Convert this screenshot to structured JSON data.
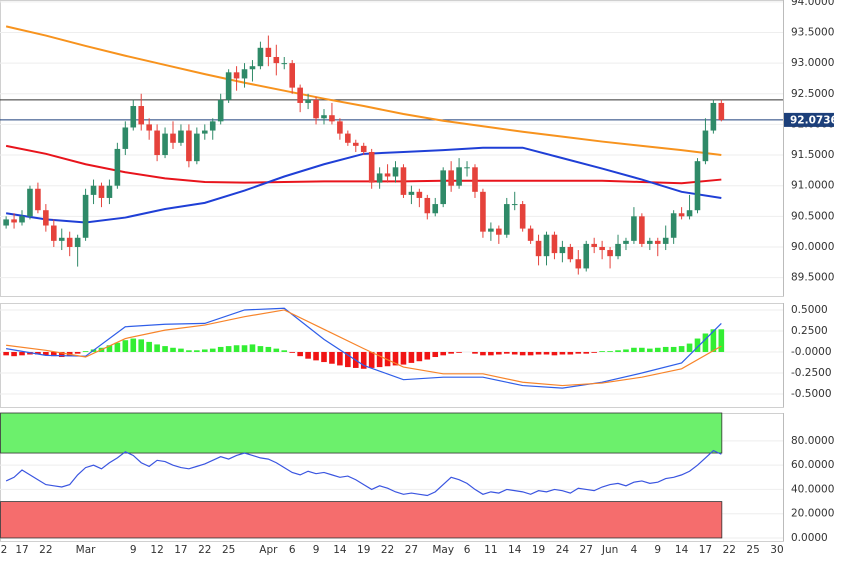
{
  "chart_data": [
    {
      "type": "candlestick",
      "xlim": [
        -0.77,
        97.76
      ],
      "ylim": [
        89.2,
        94.03
      ],
      "grid": true,
      "yticks": [
        {
          "value": 89.5,
          "label": "89.5000"
        },
        {
          "value": 90,
          "label": "90.0000"
        },
        {
          "value": 90.5,
          "label": "90.5000"
        },
        {
          "value": 91,
          "label": "91.0000"
        },
        {
          "value": 91.5,
          "label": "91.5000"
        },
        {
          "value": 92,
          "label": "92.0000"
        },
        {
          "value": 92.5,
          "label": "92.5000"
        },
        {
          "value": 93,
          "label": "93.0000"
        },
        {
          "value": 93.5,
          "label": "93.5000"
        },
        {
          "value": 94,
          "label": "94.0000"
        }
      ],
      "up_color": "#2f8a68",
      "down_color": "#e5423b",
      "open": [
        90.35,
        90.45,
        90.4,
        90.5,
        90.95,
        90.6,
        90.35,
        90.1,
        90.15,
        90.0,
        90.15,
        90.85,
        91.0,
        90.8,
        91.0,
        91.6,
        91.95,
        92.3,
        92.0,
        91.9,
        91.5,
        91.85,
        91.7,
        91.9,
        91.4,
        91.85,
        91.9,
        92.05,
        92.4,
        92.85,
        92.75,
        92.9,
        92.95,
        93.25,
        93.1,
        93.0,
        93.0,
        92.6,
        92.35,
        92.4,
        92.1,
        92.15,
        92.05,
        91.85,
        91.7,
        91.65,
        91.55,
        91.05,
        91.2,
        91.15,
        91.3,
        90.85,
        90.9,
        90.8,
        90.55,
        90.7,
        91.25,
        91.0,
        91.3,
        91.3,
        90.9,
        90.25,
        90.3,
        90.2,
        90.7,
        90.7,
        90.3,
        90.1,
        89.85,
        90.2,
        89.9,
        90.0,
        89.8,
        89.65,
        90.05,
        90.0,
        89.95,
        89.85,
        90.05,
        90.1,
        90.5,
        90.05,
        90.1,
        90.05,
        90.15,
        90.55,
        90.5,
        90.6,
        91.4,
        91.9,
        92.35
      ],
      "high": [
        90.5,
        90.55,
        90.6,
        91.0,
        91.05,
        90.7,
        90.45,
        90.3,
        90.25,
        90.2,
        90.95,
        91.1,
        91.05,
        91.1,
        91.7,
        92.05,
        92.4,
        92.5,
        92.1,
        92.0,
        91.95,
        92.05,
        92.0,
        92.0,
        91.95,
        92.0,
        92.1,
        92.5,
        92.9,
        92.95,
        93.0,
        93.05,
        93.35,
        93.45,
        93.3,
        93.1,
        93.05,
        92.65,
        92.5,
        92.45,
        92.25,
        92.35,
        92.1,
        91.9,
        91.75,
        91.7,
        91.6,
        91.3,
        91.35,
        91.4,
        91.35,
        91.0,
        90.95,
        90.85,
        90.8,
        91.3,
        91.4,
        91.45,
        91.4,
        91.35,
        90.95,
        90.4,
        90.35,
        90.8,
        90.9,
        90.75,
        90.35,
        90.2,
        90.25,
        90.25,
        90.1,
        90.05,
        89.95,
        90.1,
        90.15,
        90.1,
        90.0,
        90.2,
        90.15,
        90.65,
        90.55,
        90.15,
        90.15,
        90.35,
        90.6,
        90.65,
        90.85,
        91.45,
        92.1,
        92.4,
        92.4
      ],
      "low": [
        90.3,
        90.3,
        90.35,
        90.45,
        90.55,
        90.25,
        90.0,
        89.95,
        89.85,
        89.68,
        90.1,
        90.7,
        90.65,
        90.7,
        90.95,
        91.5,
        91.9,
        91.9,
        91.75,
        91.4,
        91.45,
        91.6,
        91.65,
        91.3,
        91.35,
        91.75,
        91.75,
        92.0,
        92.35,
        92.55,
        92.6,
        92.7,
        92.9,
        92.95,
        92.8,
        92.9,
        92.5,
        92.2,
        92.25,
        92.0,
        92.0,
        92.0,
        91.75,
        91.65,
        91.55,
        91.5,
        90.95,
        90.95,
        91.05,
        91.05,
        90.8,
        90.7,
        90.65,
        90.45,
        90.5,
        90.65,
        90.9,
        90.95,
        91.15,
        90.8,
        90.15,
        90.1,
        90.05,
        90.15,
        90.6,
        90.25,
        90.05,
        89.7,
        89.7,
        89.8,
        89.75,
        89.75,
        89.55,
        89.6,
        89.9,
        89.8,
        89.65,
        89.8,
        89.95,
        90.05,
        90.0,
        89.95,
        89.85,
        89.95,
        90.05,
        90.45,
        90.45,
        90.55,
        91.35,
        91.85,
        92.05
      ],
      "close": [
        90.45,
        90.4,
        90.5,
        90.95,
        90.6,
        90.35,
        90.1,
        90.15,
        90.0,
        90.15,
        90.85,
        91.0,
        90.8,
        91.0,
        91.6,
        91.95,
        92.3,
        92.0,
        91.9,
        91.5,
        91.85,
        91.7,
        91.9,
        91.4,
        91.85,
        91.9,
        92.05,
        92.4,
        92.85,
        92.75,
        92.9,
        92.95,
        93.25,
        93.1,
        93.0,
        93.0,
        92.6,
        92.35,
        92.4,
        92.1,
        92.15,
        92.05,
        91.85,
        91.7,
        91.65,
        91.55,
        91.05,
        91.2,
        91.15,
        91.3,
        90.85,
        90.9,
        90.8,
        90.55,
        90.7,
        91.25,
        91.0,
        91.3,
        91.3,
        90.9,
        90.25,
        90.3,
        90.2,
        90.7,
        90.7,
        90.3,
        90.1,
        89.85,
        90.2,
        89.9,
        90.0,
        89.8,
        89.65,
        90.05,
        90.0,
        89.95,
        89.85,
        90.05,
        90.1,
        90.5,
        90.05,
        90.1,
        90.05,
        90.15,
        90.55,
        90.5,
        90.6,
        91.4,
        91.9,
        92.35,
        92.0736
      ],
      "series": [
        {
          "color": "#f7931e",
          "x": [
            0,
            5,
            10,
            15,
            20,
            25,
            30,
            35,
            40,
            45,
            50,
            55,
            60,
            65,
            70,
            75,
            80,
            85,
            90
          ],
          "values": [
            93.6,
            93.45,
            93.28,
            93.12,
            92.97,
            92.82,
            92.68,
            92.55,
            92.42,
            92.3,
            92.17,
            92.06,
            91.97,
            91.88,
            91.8,
            91.72,
            91.65,
            91.58,
            91.5
          ]
        },
        {
          "color": "#e8141c",
          "x": [
            0,
            5,
            10,
            15,
            20,
            25,
            30,
            35,
            40,
            45,
            50,
            55,
            60,
            65,
            70,
            75,
            80,
            85,
            90
          ],
          "values": [
            91.65,
            91.52,
            91.35,
            91.22,
            91.12,
            91.06,
            91.05,
            91.06,
            91.07,
            91.07,
            91.07,
            91.08,
            91.08,
            91.08,
            91.08,
            91.08,
            91.06,
            91.04,
            91.1
          ]
        },
        {
          "color": "#1f3fd6",
          "x": [
            0,
            5,
            10,
            15,
            20,
            25,
            30,
            35,
            40,
            45,
            50,
            55,
            60,
            65,
            70,
            75,
            80,
            85,
            90
          ],
          "values": [
            90.55,
            90.45,
            90.4,
            90.48,
            90.62,
            90.72,
            90.92,
            91.15,
            91.35,
            91.52,
            91.55,
            91.58,
            91.62,
            91.62,
            91.45,
            91.28,
            91.1,
            90.9,
            90.8
          ]
        }
      ],
      "hlines": [
        {
          "value": 92.4,
          "color": "#333333"
        }
      ],
      "last_price": 92.0736,
      "last_price_color": "#1c3f7a"
    },
    {
      "type": "macd",
      "xlim": [
        -0.77,
        97.76
      ],
      "ylim": [
        -0.655,
        0.583
      ],
      "grid": true,
      "yticks": [
        {
          "value": -0.5,
          "label": "-0.5000"
        },
        {
          "value": -0.25,
          "label": "-0.2500"
        },
        {
          "value": 0,
          "label": "-0.0000"
        },
        {
          "value": 0.25,
          "label": "0.2500"
        },
        {
          "value": 0.5,
          "label": "0.5000"
        }
      ],
      "pos_color": "#33ee33",
      "neg_color": "#f01414",
      "histogram": [
        -0.04,
        -0.05,
        -0.04,
        -0.03,
        -0.03,
        -0.04,
        -0.05,
        -0.06,
        -0.05,
        -0.02,
        0.01,
        0.03,
        0.05,
        0.08,
        0.11,
        0.14,
        0.16,
        0.15,
        0.12,
        0.09,
        0.07,
        0.05,
        0.04,
        0.02,
        0.02,
        0.03,
        0.04,
        0.06,
        0.07,
        0.08,
        0.08,
        0.09,
        0.07,
        0.06,
        0.04,
        0.02,
        -0.01,
        -0.05,
        -0.08,
        -0.1,
        -0.12,
        -0.14,
        -0.16,
        -0.18,
        -0.19,
        -0.2,
        -0.19,
        -0.18,
        -0.17,
        -0.16,
        -0.15,
        -0.13,
        -0.11,
        -0.09,
        -0.06,
        -0.04,
        -0.02,
        -0.01,
        0.0,
        -0.02,
        -0.04,
        -0.04,
        -0.03,
        -0.02,
        -0.03,
        -0.04,
        -0.04,
        -0.03,
        -0.03,
        -0.04,
        -0.03,
        -0.03,
        -0.02,
        -0.02,
        -0.01,
        0.01,
        0.01,
        0.02,
        0.03,
        0.05,
        0.05,
        0.04,
        0.05,
        0.06,
        0.06,
        0.07,
        0.1,
        0.16,
        0.22,
        0.27,
        0.27
      ],
      "series": [
        {
          "color": "#2f5ee8",
          "x": [
            0,
            5,
            10,
            15,
            20,
            25,
            30,
            35,
            40,
            45,
            50,
            55,
            60,
            65,
            70,
            75,
            80,
            85,
            90
          ],
          "values": [
            0.04,
            -0.04,
            -0.05,
            0.3,
            0.33,
            0.34,
            0.5,
            0.52,
            0.15,
            -0.16,
            -0.33,
            -0.3,
            -0.3,
            -0.4,
            -0.43,
            -0.36,
            -0.25,
            -0.13,
            0.34
          ]
        },
        {
          "color": "#f7842a",
          "x": [
            0,
            5,
            10,
            15,
            20,
            25,
            30,
            35,
            40,
            45,
            50,
            55,
            60,
            65,
            70,
            75,
            80,
            85,
            90
          ],
          "values": [
            0.08,
            0.02,
            -0.06,
            0.16,
            0.26,
            0.32,
            0.42,
            0.5,
            0.27,
            0.04,
            -0.18,
            -0.26,
            -0.26,
            -0.36,
            -0.4,
            -0.37,
            -0.3,
            -0.2,
            0.07
          ]
        }
      ]
    },
    {
      "type": "line",
      "xlim": [
        -0.77,
        97.76
      ],
      "ylim": [
        -2.5,
        103
      ],
      "grid": true,
      "yticks": [
        {
          "value": 0,
          "label": "0.0000"
        },
        {
          "value": 20,
          "label": "20.0000"
        },
        {
          "value": 40,
          "label": "40.0000"
        },
        {
          "value": 60,
          "label": "60.0000"
        },
        {
          "value": 80,
          "label": "80.0000"
        }
      ],
      "bands": [
        {
          "from": 70,
          "to": 103,
          "color": "#6cf06c"
        },
        {
          "from": 0,
          "to": 30,
          "color": "#f56d6d"
        }
      ],
      "series": [
        {
          "color": "#3a55e0",
          "values": [
            47,
            50,
            56,
            52,
            48,
            44,
            43,
            42,
            44,
            52,
            58,
            60,
            57,
            62,
            66,
            71,
            68,
            62,
            59,
            64,
            63,
            60,
            58,
            57,
            59,
            61,
            64,
            67,
            65,
            68,
            70,
            68,
            66,
            65,
            62,
            58,
            54,
            52,
            55,
            53,
            54,
            52,
            50,
            51,
            48,
            44,
            40,
            43,
            41,
            38,
            36,
            37,
            36,
            35,
            38,
            44,
            50,
            48,
            45,
            40,
            36,
            38,
            37,
            40,
            39,
            38,
            36,
            39,
            38,
            40,
            39,
            37,
            41,
            40,
            39,
            42,
            44,
            45,
            43,
            46,
            47,
            45,
            46,
            49,
            50,
            52,
            55,
            60,
            66,
            72,
            69
          ]
        }
      ],
      "xticks": [
        {
          "value": -0.6,
          "label": "2"
        },
        {
          "value": 2,
          "label": "17"
        },
        {
          "value": 5,
          "label": "22"
        },
        {
          "value": 10,
          "label": "Mar"
        },
        {
          "value": 16,
          "label": "9"
        },
        {
          "value": 19,
          "label": "12"
        },
        {
          "value": 22,
          "label": "17"
        },
        {
          "value": 25,
          "label": "22"
        },
        {
          "value": 28,
          "label": "25"
        },
        {
          "value": 33,
          "label": "Apr"
        },
        {
          "value": 36,
          "label": "6"
        },
        {
          "value": 39,
          "label": "9"
        },
        {
          "value": 42,
          "label": "14"
        },
        {
          "value": 45,
          "label": "19"
        },
        {
          "value": 48,
          "label": "22"
        },
        {
          "value": 51,
          "label": "27"
        },
        {
          "value": 55,
          "label": "May"
        },
        {
          "value": 58,
          "label": "6"
        },
        {
          "value": 61,
          "label": "11"
        },
        {
          "value": 64,
          "label": "14"
        },
        {
          "value": 67,
          "label": "19"
        },
        {
          "value": 70,
          "label": "24"
        },
        {
          "value": 73,
          "label": "27"
        },
        {
          "value": 76,
          "label": "Jun"
        },
        {
          "value": 79,
          "label": "4"
        },
        {
          "value": 82,
          "label": "9"
        },
        {
          "value": 85,
          "label": "14"
        },
        {
          "value": 88,
          "label": "17"
        },
        {
          "value": 91,
          "label": "22"
        },
        {
          "value": 94,
          "label": "25"
        },
        {
          "value": 97,
          "label": "30"
        }
      ]
    }
  ]
}
